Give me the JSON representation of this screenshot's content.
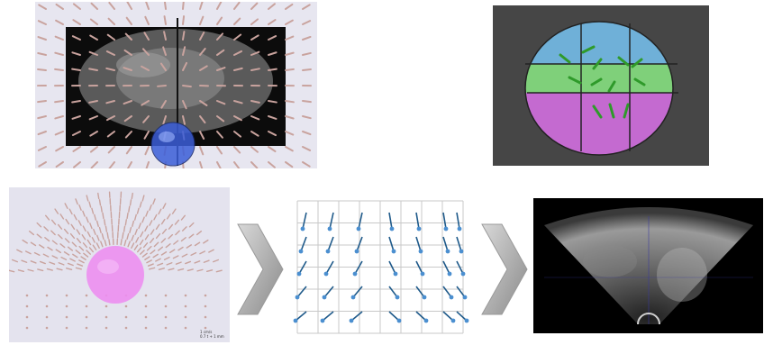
{
  "figure": {
    "panels": [
      {
        "id": "probe-volume",
        "content": "3D ultrasound volume with surrounding arrow field and spherical probe marker"
      },
      {
        "id": "segmentation",
        "content": "Transverse ultrasound slice with color-coded prostate sectors and green motion arrows"
      },
      {
        "id": "field-model",
        "content": "3D displacement field arrows around pink spherical probe model"
      },
      {
        "id": "vector-grid",
        "content": "2D grid of blue displacement vectors"
      },
      {
        "id": "ultrasound-output",
        "content": "Fan-shaped ultrasound image result"
      }
    ],
    "flow_arrows": [
      "next-step-chevron",
      "next-step-chevron"
    ],
    "scale_caption_lines": [
      "1 cm/s",
      "0.7 t + 1 mm"
    ],
    "colors": {
      "probe_sphere": "#3b5ed8",
      "model_sphere": "#ec8ef0",
      "field_arrows": "#c9a39e",
      "grid_arrows": "#1f5a8a",
      "seg_blue": "#6fb0d8",
      "seg_green": "#7fd07a",
      "seg_magenta": "#c46ad0",
      "motion_arrows": "#2f9a2a",
      "chevron": "#9a9a9a"
    }
  }
}
